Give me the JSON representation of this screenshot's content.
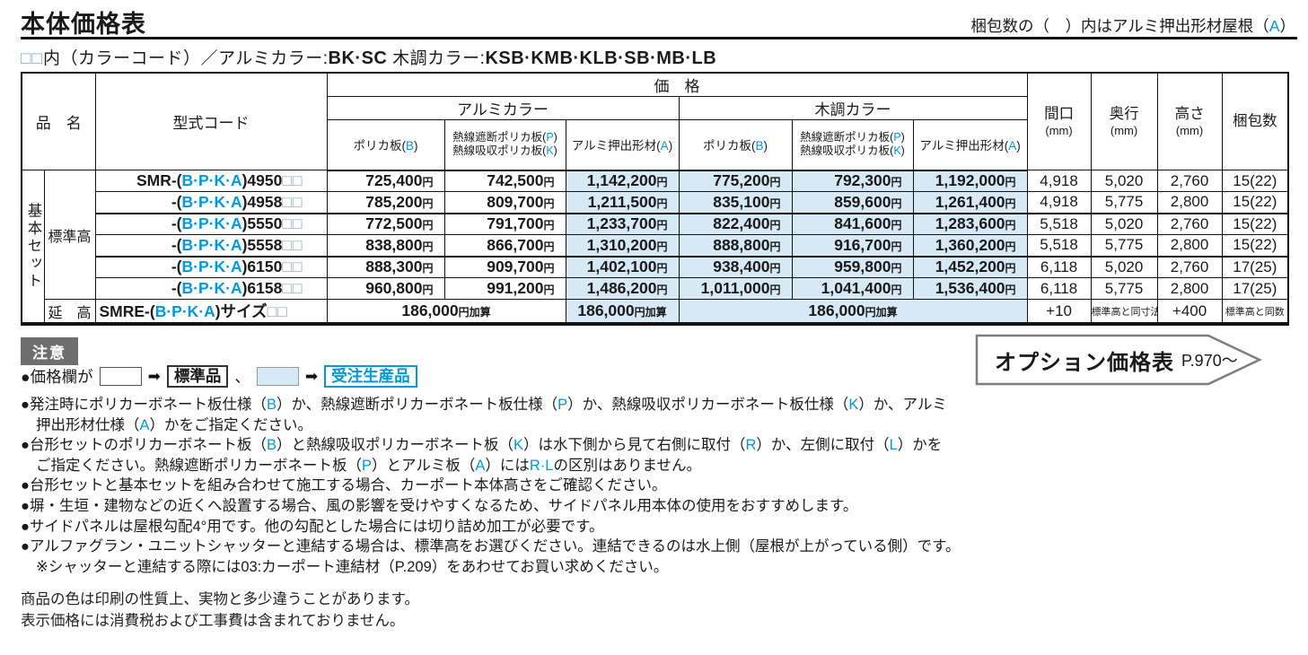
{
  "labels": {
    "yen": "円",
    "yen_add": "円加算"
  },
  "header": {
    "title": "本体価格表",
    "packing_note": [
      {
        "t": "梱包数の（　）内はアルミ押出形材屋根（"
      },
      {
        "t": "A",
        "c": "b"
      },
      {
        "t": "）"
      }
    ],
    "color_line": [
      {
        "t": "□□",
        "c": "sq"
      },
      {
        "t": "内（カラーコード）／アルミカラー:"
      },
      {
        "t": "BK·SC",
        "c": "bold"
      },
      {
        "t": " 木調カラー:"
      },
      {
        "t": "KSB·KMB·KLB·SB·MB·LB",
        "c": "bold"
      }
    ]
  },
  "table": {
    "headers": {
      "product": "品　名",
      "model": "型式コード",
      "price": "価　格",
      "alumi_color": "アルミカラー",
      "wood_color": "木調カラー",
      "poly": [
        {
          "t": "ポリカ板("
        },
        {
          "t": "B",
          "c": "b"
        },
        {
          "t": ")"
        }
      ],
      "heat1": [
        {
          "t": "熱線遮断ポリカ板("
        },
        {
          "t": "P",
          "c": "b"
        },
        {
          "t": ")"
        }
      ],
      "heat2": [
        {
          "t": "熱線吸収ポリカ板("
        },
        {
          "t": "K",
          "c": "b"
        },
        {
          "t": ")"
        }
      ],
      "alumi_ex": [
        {
          "t": "アルミ押出形材("
        },
        {
          "t": "A",
          "c": "b"
        },
        {
          "t": ")"
        }
      ],
      "width": {
        "label": "間口",
        "unit": "(mm)"
      },
      "depth": {
        "label": "奥行",
        "unit": "(mm)"
      },
      "height": {
        "label": "高さ",
        "unit": "(mm)"
      },
      "packing": "梱包数"
    },
    "group": "基本セット",
    "subgroup_std": "標準高",
    "subgroup_ext": "延　高",
    "rows": [
      {
        "code": [
          {
            "t": "SMR-("
          },
          {
            "t": "B·P·K·A",
            "c": "b"
          },
          {
            "t": ")4950"
          },
          {
            "t": "□□",
            "c": "sq"
          }
        ],
        "prices": [
          "725,400",
          "742,500",
          "1,142,200",
          "775,200",
          "792,300",
          "1,192,000"
        ],
        "dims": [
          "4,918",
          "5,020",
          "2,760",
          "15(22)"
        ]
      },
      {
        "code": [
          {
            "t": "-("
          },
          {
            "t": "B·P·K·A",
            "c": "b"
          },
          {
            "t": ")4958"
          },
          {
            "t": "□□",
            "c": "sq"
          }
        ],
        "prices": [
          "785,200",
          "809,700",
          "1,211,500",
          "835,100",
          "859,600",
          "1,261,400"
        ],
        "dims": [
          "4,918",
          "5,775",
          "2,800",
          "15(22)"
        ]
      },
      {
        "code": [
          {
            "t": "-("
          },
          {
            "t": "B·P·K·A",
            "c": "b"
          },
          {
            "t": ")5550"
          },
          {
            "t": "□□",
            "c": "sq"
          }
        ],
        "prices": [
          "772,500",
          "791,700",
          "1,233,700",
          "822,400",
          "841,600",
          "1,283,600"
        ],
        "dims": [
          "5,518",
          "5,020",
          "2,760",
          "15(22)"
        ]
      },
      {
        "code": [
          {
            "t": "-("
          },
          {
            "t": "B·P·K·A",
            "c": "b"
          },
          {
            "t": ")5558"
          },
          {
            "t": "□□",
            "c": "sq"
          }
        ],
        "prices": [
          "838,800",
          "866,700",
          "1,310,200",
          "888,800",
          "916,700",
          "1,360,200"
        ],
        "dims": [
          "5,518",
          "5,775",
          "2,800",
          "15(22)"
        ]
      },
      {
        "code": [
          {
            "t": "-("
          },
          {
            "t": "B·P·K·A",
            "c": "b"
          },
          {
            "t": ")6150"
          },
          {
            "t": "□□",
            "c": "sq"
          }
        ],
        "prices": [
          "888,300",
          "909,700",
          "1,402,100",
          "938,400",
          "959,800",
          "1,452,200"
        ],
        "dims": [
          "6,118",
          "5,020",
          "2,760",
          "17(25)"
        ]
      },
      {
        "code": [
          {
            "t": "-("
          },
          {
            "t": "B·P·K·A",
            "c": "b"
          },
          {
            "t": ")6158"
          },
          {
            "t": "□□",
            "c": "sq"
          }
        ],
        "prices": [
          "960,800",
          "991,200",
          "1,486,200",
          "1,011,000",
          "1,041,400",
          "1,536,400"
        ],
        "dims": [
          "6,118",
          "5,775",
          "2,800",
          "17(25)"
        ]
      }
    ],
    "ext_row": {
      "code": [
        {
          "t": "SMRE-("
        },
        {
          "t": "B·P·K·A",
          "c": "b"
        },
        {
          "t": ")サイズ"
        },
        {
          "t": "□□",
          "c": "sq"
        }
      ],
      "adds": [
        "186,000",
        "186,000",
        "186,000"
      ],
      "dims": [
        "+10",
        "標準高と同寸法",
        "+400",
        "標準高と同数"
      ]
    }
  },
  "notice": {
    "label": "注意"
  },
  "legend": {
    "prefix": "●価格欄が",
    "arrow": "➡",
    "standard": "標準品",
    "comma": "、",
    "made_to_order": "受注生産品"
  },
  "notes": [
    {
      "indent": false,
      "segments": [
        {
          "t": "●発注時にポリカーボネート板仕様（"
        },
        {
          "t": "B",
          "c": "b"
        },
        {
          "t": "）か、熱線遮断ポリカーボネート板仕様（"
        },
        {
          "t": "P",
          "c": "b"
        },
        {
          "t": "）か、熱線吸収ポリカーボネート板仕様（"
        },
        {
          "t": "K",
          "c": "b"
        },
        {
          "t": "）か、アルミ"
        }
      ]
    },
    {
      "indent": true,
      "segments": [
        {
          "t": "押出形材仕様（"
        },
        {
          "t": "A",
          "c": "b"
        },
        {
          "t": "）かをご指定ください。"
        }
      ]
    },
    {
      "indent": false,
      "segments": [
        {
          "t": "●台形セットのポリカーボネート板（"
        },
        {
          "t": "B",
          "c": "b"
        },
        {
          "t": "）と熱線吸収ポリカーボネート板（"
        },
        {
          "t": "K",
          "c": "b"
        },
        {
          "t": "）は水下側から見て右側に取付（"
        },
        {
          "t": "R",
          "c": "b"
        },
        {
          "t": "）か、左側に取付（"
        },
        {
          "t": "L",
          "c": "b"
        },
        {
          "t": "）かを"
        }
      ]
    },
    {
      "indent": true,
      "segments": [
        {
          "t": "ご指定ください。熱線遮断ポリカーボネート板（"
        },
        {
          "t": "P",
          "c": "b"
        },
        {
          "t": "）とアルミ板（"
        },
        {
          "t": "A",
          "c": "b"
        },
        {
          "t": "）には"
        },
        {
          "t": "R·L",
          "c": "b"
        },
        {
          "t": "の区別はありません。"
        }
      ]
    },
    {
      "indent": false,
      "segments": [
        {
          "t": "●台形セットと基本セットを組み合わせて施工する場合、カーポート本体高さをご確認ください。"
        }
      ]
    },
    {
      "indent": false,
      "segments": [
        {
          "t": "●塀・生垣・建物などの近くへ設置する場合、風の影響を受けやすくなるため、サイドパネル用本体の使用をおすすめします。"
        }
      ]
    },
    {
      "indent": false,
      "segments": [
        {
          "t": "●サイドパネルは屋根勾配4°用です。他の勾配とした場合には切り詰め加工が必要です。"
        }
      ]
    },
    {
      "indent": false,
      "segments": [
        {
          "t": "●アルファグラン・ユニットシャッターと連結する場合は、標準高をお選びください。連結できるのは水上側（屋根が上がっている側）です。"
        }
      ]
    },
    {
      "indent": true,
      "segments": [
        {
          "t": "※シャッターと連結する際には03:カーポート連結材（P.209）をあわせてお買い求めください。"
        }
      ]
    }
  ],
  "option_banner": {
    "title": "オプション価格表",
    "page": "P.970～"
  },
  "disclaimer": [
    "商品の色は印刷の性質上、実物と多少違うことがあります。",
    "表示価格には消費税および工事費は含まれておりません。"
  ],
  "colors": {
    "accent_blue": "#0099d9",
    "cell_blue": "#d7e9f5",
    "notice_gray": "#6e6e6e"
  }
}
